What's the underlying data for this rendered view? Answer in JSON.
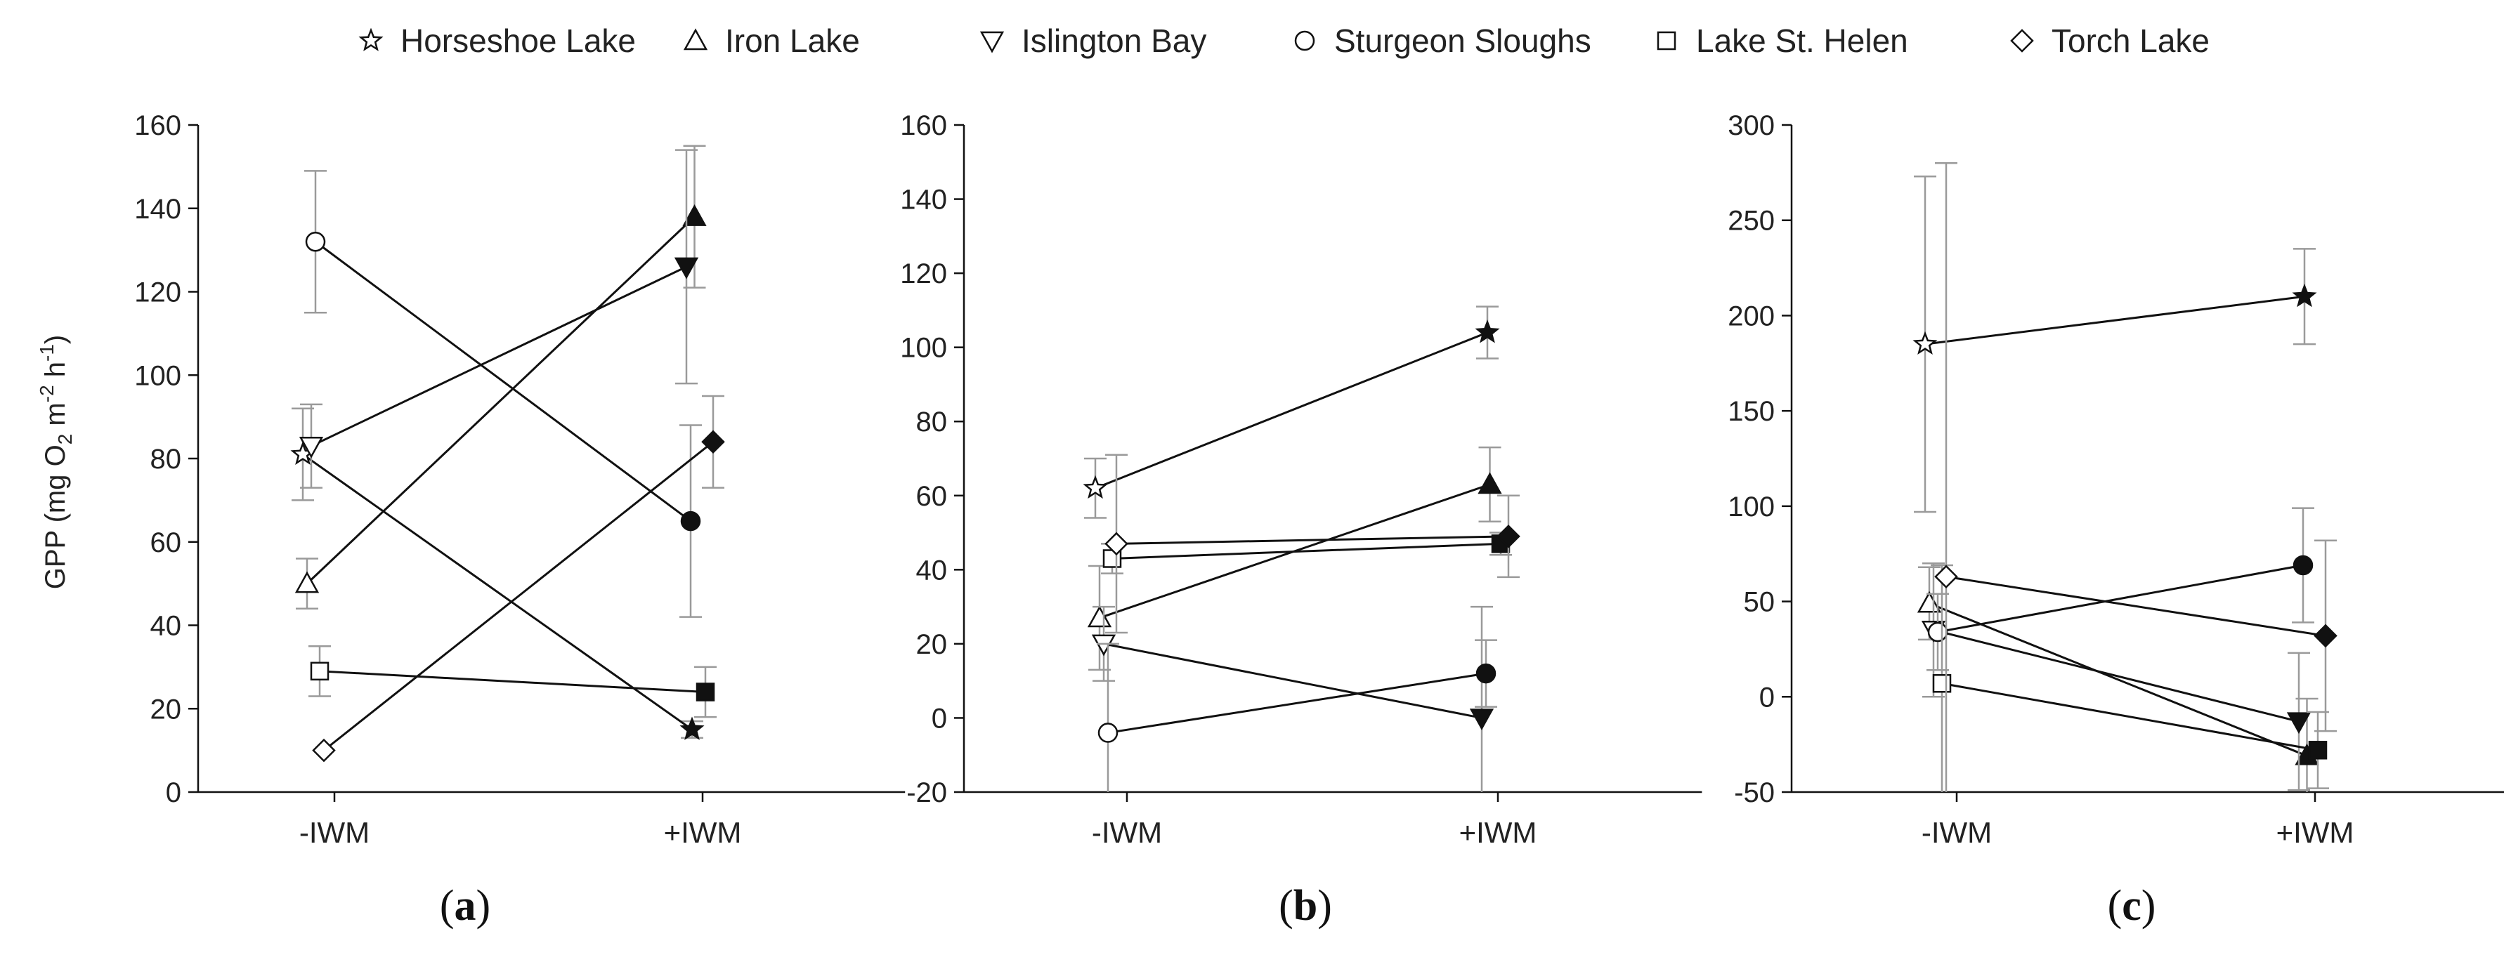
{
  "legend": [
    {
      "name": "Horseshoe Lake",
      "marker": "star"
    },
    {
      "name": "Iron Lake",
      "marker": "triangle-up"
    },
    {
      "name": "Islington Bay",
      "marker": "triangle-down"
    },
    {
      "name": "Sturgeon Sloughs",
      "marker": "circle"
    },
    {
      "name": "Lake St. Helen",
      "marker": "square"
    },
    {
      "name": "Torch Lake",
      "marker": "diamond"
    }
  ],
  "ylabel": {
    "prefix": "GPP (mg O",
    "sub1": "2",
    "mid1": " m",
    "sup1": "-2",
    "mid2": " h",
    "sup2": "-1",
    "suffix": ")"
  },
  "chart_data": [
    {
      "type": "line",
      "panel_label": "a",
      "categories": [
        "-IWM",
        "+IWM"
      ],
      "ylim": [
        0,
        160
      ],
      "yticks": [
        0,
        20,
        40,
        60,
        80,
        100,
        120,
        140,
        160
      ],
      "series": [
        {
          "name": "Horseshoe Lake",
          "marker": "star",
          "values": [
            81,
            15
          ],
          "errors": [
            11,
            2
          ]
        },
        {
          "name": "Iron Lake",
          "marker": "triangle-up",
          "values": [
            50,
            138
          ],
          "errors": [
            6,
            17
          ]
        },
        {
          "name": "Islington Bay",
          "marker": "triangle-down",
          "values": [
            83,
            126
          ],
          "errors": [
            10,
            28
          ]
        },
        {
          "name": "Sturgeon Sloughs",
          "marker": "circle",
          "values": [
            132,
            65
          ],
          "errors": [
            17,
            23
          ]
        },
        {
          "name": "Lake St. Helen",
          "marker": "square",
          "values": [
            29,
            24
          ],
          "errors": [
            6,
            6
          ]
        },
        {
          "name": "Torch Lake",
          "marker": "diamond",
          "values": [
            10,
            84
          ],
          "errors": [
            0,
            11
          ]
        }
      ]
    },
    {
      "type": "line",
      "panel_label": "b",
      "categories": [
        "-IWM",
        "+IWM"
      ],
      "ylim": [
        -20,
        160
      ],
      "yticks": [
        -20,
        0,
        20,
        40,
        60,
        80,
        100,
        120,
        140,
        160
      ],
      "series": [
        {
          "name": "Horseshoe Lake",
          "marker": "star",
          "values": [
            62,
            104
          ],
          "errors": [
            8,
            7
          ]
        },
        {
          "name": "Iron Lake",
          "marker": "triangle-up",
          "values": [
            27,
            63
          ],
          "errors": [
            14,
            10
          ]
        },
        {
          "name": "Islington Bay",
          "marker": "triangle-down",
          "values": [
            20,
            0
          ],
          "errors": [
            10,
            30
          ]
        },
        {
          "name": "Sturgeon Sloughs",
          "marker": "circle",
          "values": [
            -4,
            12
          ],
          "errors": [
            24,
            9
          ]
        },
        {
          "name": "Lake St. Helen",
          "marker": "square",
          "values": [
            43,
            47
          ],
          "errors": [
            4,
            3
          ]
        },
        {
          "name": "Torch Lake",
          "marker": "diamond",
          "values": [
            47,
            49
          ],
          "errors": [
            24,
            11
          ]
        }
      ]
    },
    {
      "type": "line",
      "panel_label": "c",
      "categories": [
        "-IWM",
        "+IWM"
      ],
      "ylim": [
        -50,
        300
      ],
      "yticks": [
        -50,
        0,
        50,
        100,
        150,
        200,
        250,
        300
      ],
      "series": [
        {
          "name": "Horseshoe Lake",
          "marker": "star",
          "values": [
            185,
            210
          ],
          "errors": [
            88,
            25
          ]
        },
        {
          "name": "Iron Lake",
          "marker": "triangle-up",
          "values": [
            49,
            -31
          ],
          "errors": [
            19,
            30
          ]
        },
        {
          "name": "Islington Bay",
          "marker": "triangle-down",
          "values": [
            35,
            -13
          ],
          "errors": [
            35,
            36
          ]
        },
        {
          "name": "Sturgeon Sloughs",
          "marker": "circle",
          "values": [
            34,
            69
          ],
          "errors": [
            20,
            30
          ]
        },
        {
          "name": "Lake St. Helen",
          "marker": "square",
          "values": [
            7,
            -28
          ],
          "errors": [
            62,
            20
          ]
        },
        {
          "name": "Torch Lake",
          "marker": "diamond",
          "values": [
            63,
            32
          ],
          "errors": [
            217,
            50
          ]
        }
      ]
    }
  ]
}
